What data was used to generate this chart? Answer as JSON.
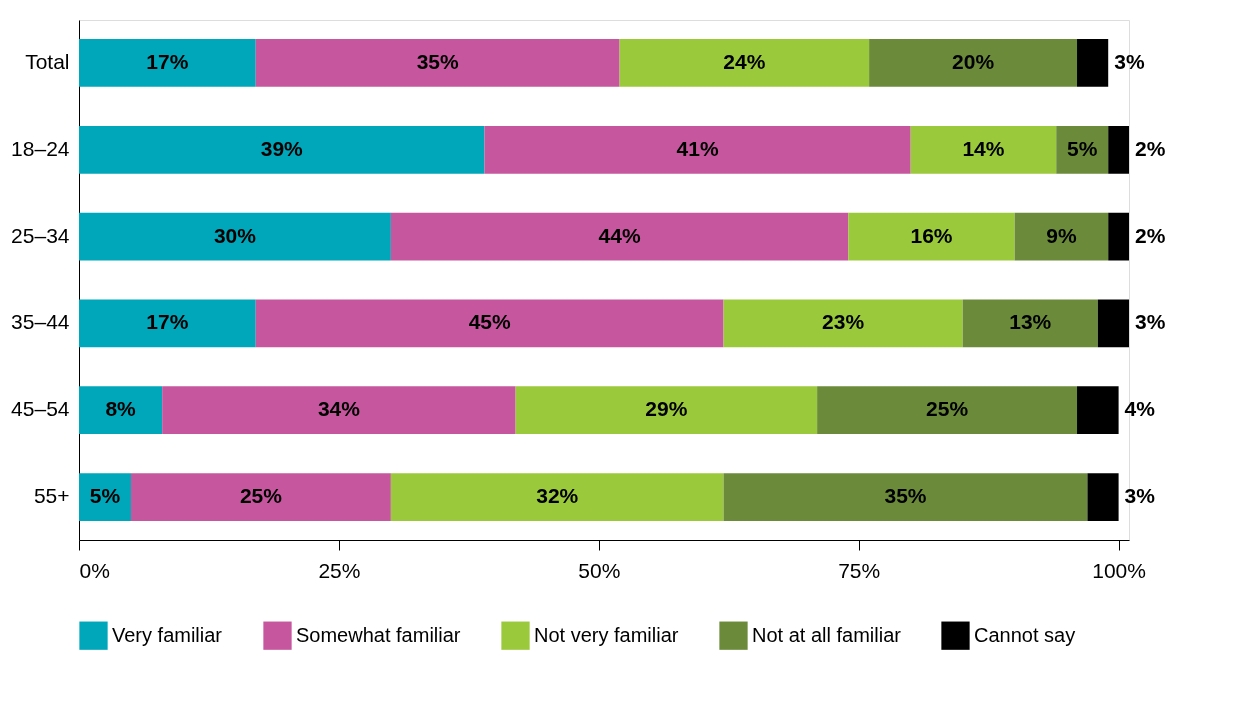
{
  "chart_data": {
    "type": "bar",
    "orientation": "horizontal",
    "stacked": true,
    "categories": [
      "Total",
      "18–24",
      "25–34",
      "35–44",
      "45–54",
      "55+"
    ],
    "series": [
      {
        "name": "Very familiar",
        "color": "#00a6ba",
        "values": [
          17,
          39,
          30,
          17,
          8,
          5
        ],
        "value_labels": [
          "17%",
          "39%",
          "30%",
          "17%",
          "8%",
          "5%"
        ]
      },
      {
        "name": "Somewhat familiar",
        "color": "#c6579e",
        "values": [
          35,
          41,
          44,
          45,
          34,
          25
        ],
        "value_labels": [
          "35%",
          "41%",
          "44%",
          "45%",
          "34%",
          "25%"
        ]
      },
      {
        "name": "Not very familiar",
        "color": "#9bc93c",
        "values": [
          24,
          14,
          16,
          23,
          29,
          32
        ],
        "value_labels": [
          "24%",
          "14%",
          "16%",
          "23%",
          "29%",
          "32%"
        ]
      },
      {
        "name": "Not at all familiar",
        "color": "#6b8b3b",
        "values": [
          20,
          5,
          9,
          13,
          25,
          35
        ],
        "value_labels": [
          "20%",
          "5%",
          "9%",
          "13%",
          "25%",
          "35%"
        ]
      },
      {
        "name": "Cannot say",
        "color": "#000000",
        "values": [
          3,
          2,
          2,
          3,
          4,
          3
        ],
        "value_labels": [
          "3%",
          "2%",
          "2%",
          "3%",
          "4%",
          "3%"
        ]
      }
    ],
    "xlim": [
      0,
      101
    ],
    "xticks": [
      {
        "value": 0,
        "label": "0%"
      },
      {
        "value": 25,
        "label": "25%"
      },
      {
        "value": 50,
        "label": "50%"
      },
      {
        "value": 75,
        "label": "75%"
      },
      {
        "value": 100,
        "label": "100%"
      }
    ],
    "grid": false,
    "legend": "bottom"
  }
}
